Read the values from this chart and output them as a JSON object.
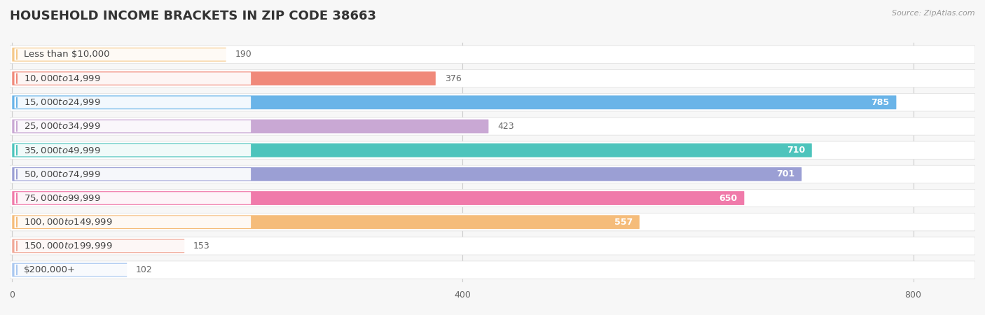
{
  "title": "HOUSEHOLD INCOME BRACKETS IN ZIP CODE 38663",
  "source": "Source: ZipAtlas.com",
  "categories": [
    "Less than $10,000",
    "$10,000 to $14,999",
    "$15,000 to $24,999",
    "$25,000 to $34,999",
    "$35,000 to $49,999",
    "$50,000 to $74,999",
    "$75,000 to $99,999",
    "$100,000 to $149,999",
    "$150,000 to $199,999",
    "$200,000+"
  ],
  "values": [
    190,
    376,
    785,
    423,
    710,
    701,
    650,
    557,
    153,
    102
  ],
  "bar_colors": [
    "#f5c98a",
    "#f0897a",
    "#6ab4e8",
    "#c9a8d4",
    "#4dc4bc",
    "#9b9fd4",
    "#f07aaa",
    "#f5bc7a",
    "#f0a898",
    "#aac8f0"
  ],
  "xlim": [
    0,
    855
  ],
  "data_max": 800,
  "xticks": [
    0,
    400,
    800
  ],
  "background_color": "#f7f7f7",
  "row_bg_color": "#ebebeb",
  "title_fontsize": 13,
  "label_fontsize": 9.5,
  "value_fontsize": 9,
  "bar_height": 0.58,
  "fig_width": 14.06,
  "fig_height": 4.5,
  "value_threshold": 500
}
